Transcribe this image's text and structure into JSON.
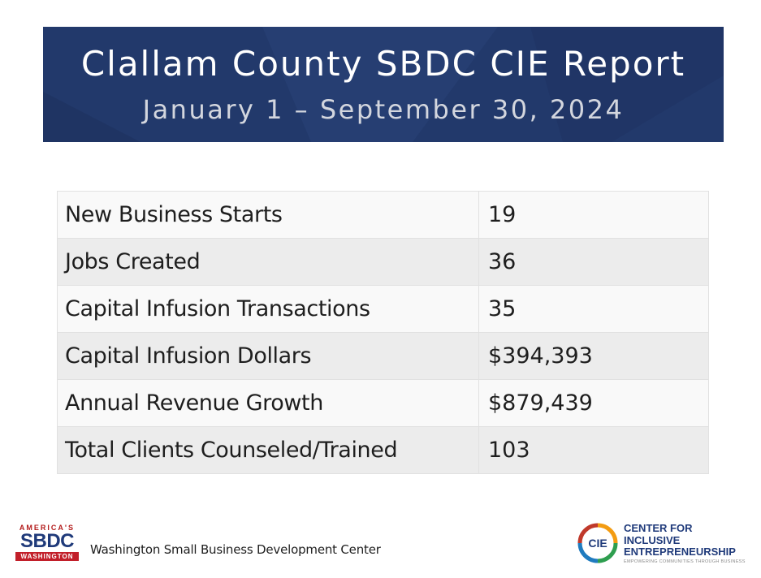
{
  "header": {
    "title": "Clallam County SBDC CIE Report",
    "subtitle": "January 1 – September 30, 2024",
    "background_color": "#22396b"
  },
  "metrics": [
    {
      "label": "New Business Starts",
      "value": "19"
    },
    {
      "label": "Jobs Created",
      "value": "36"
    },
    {
      "label": "Capital Infusion Transactions",
      "value": "35"
    },
    {
      "label": "Capital Infusion Dollars",
      "value": "$394,393"
    },
    {
      "label": "Annual Revenue Growth",
      "value": "$879,439"
    },
    {
      "label": "Total Clients Counseled/Trained",
      "value": "103"
    }
  ],
  "footer": {
    "sbdc_logo": {
      "top_text": "AMERICA'S",
      "main_text": "SBDC",
      "bottom_text": "WASHINGTON"
    },
    "org_name": "Washington Small Business Development Center",
    "cie_logo": {
      "mark_text": "CIE",
      "line1": "CENTER FOR",
      "line2": "INCLUSIVE",
      "line3": "ENTREPRENEURSHIP",
      "tagline": "EMPOWERING COMMUNITIES THROUGH BUSINESS"
    }
  }
}
